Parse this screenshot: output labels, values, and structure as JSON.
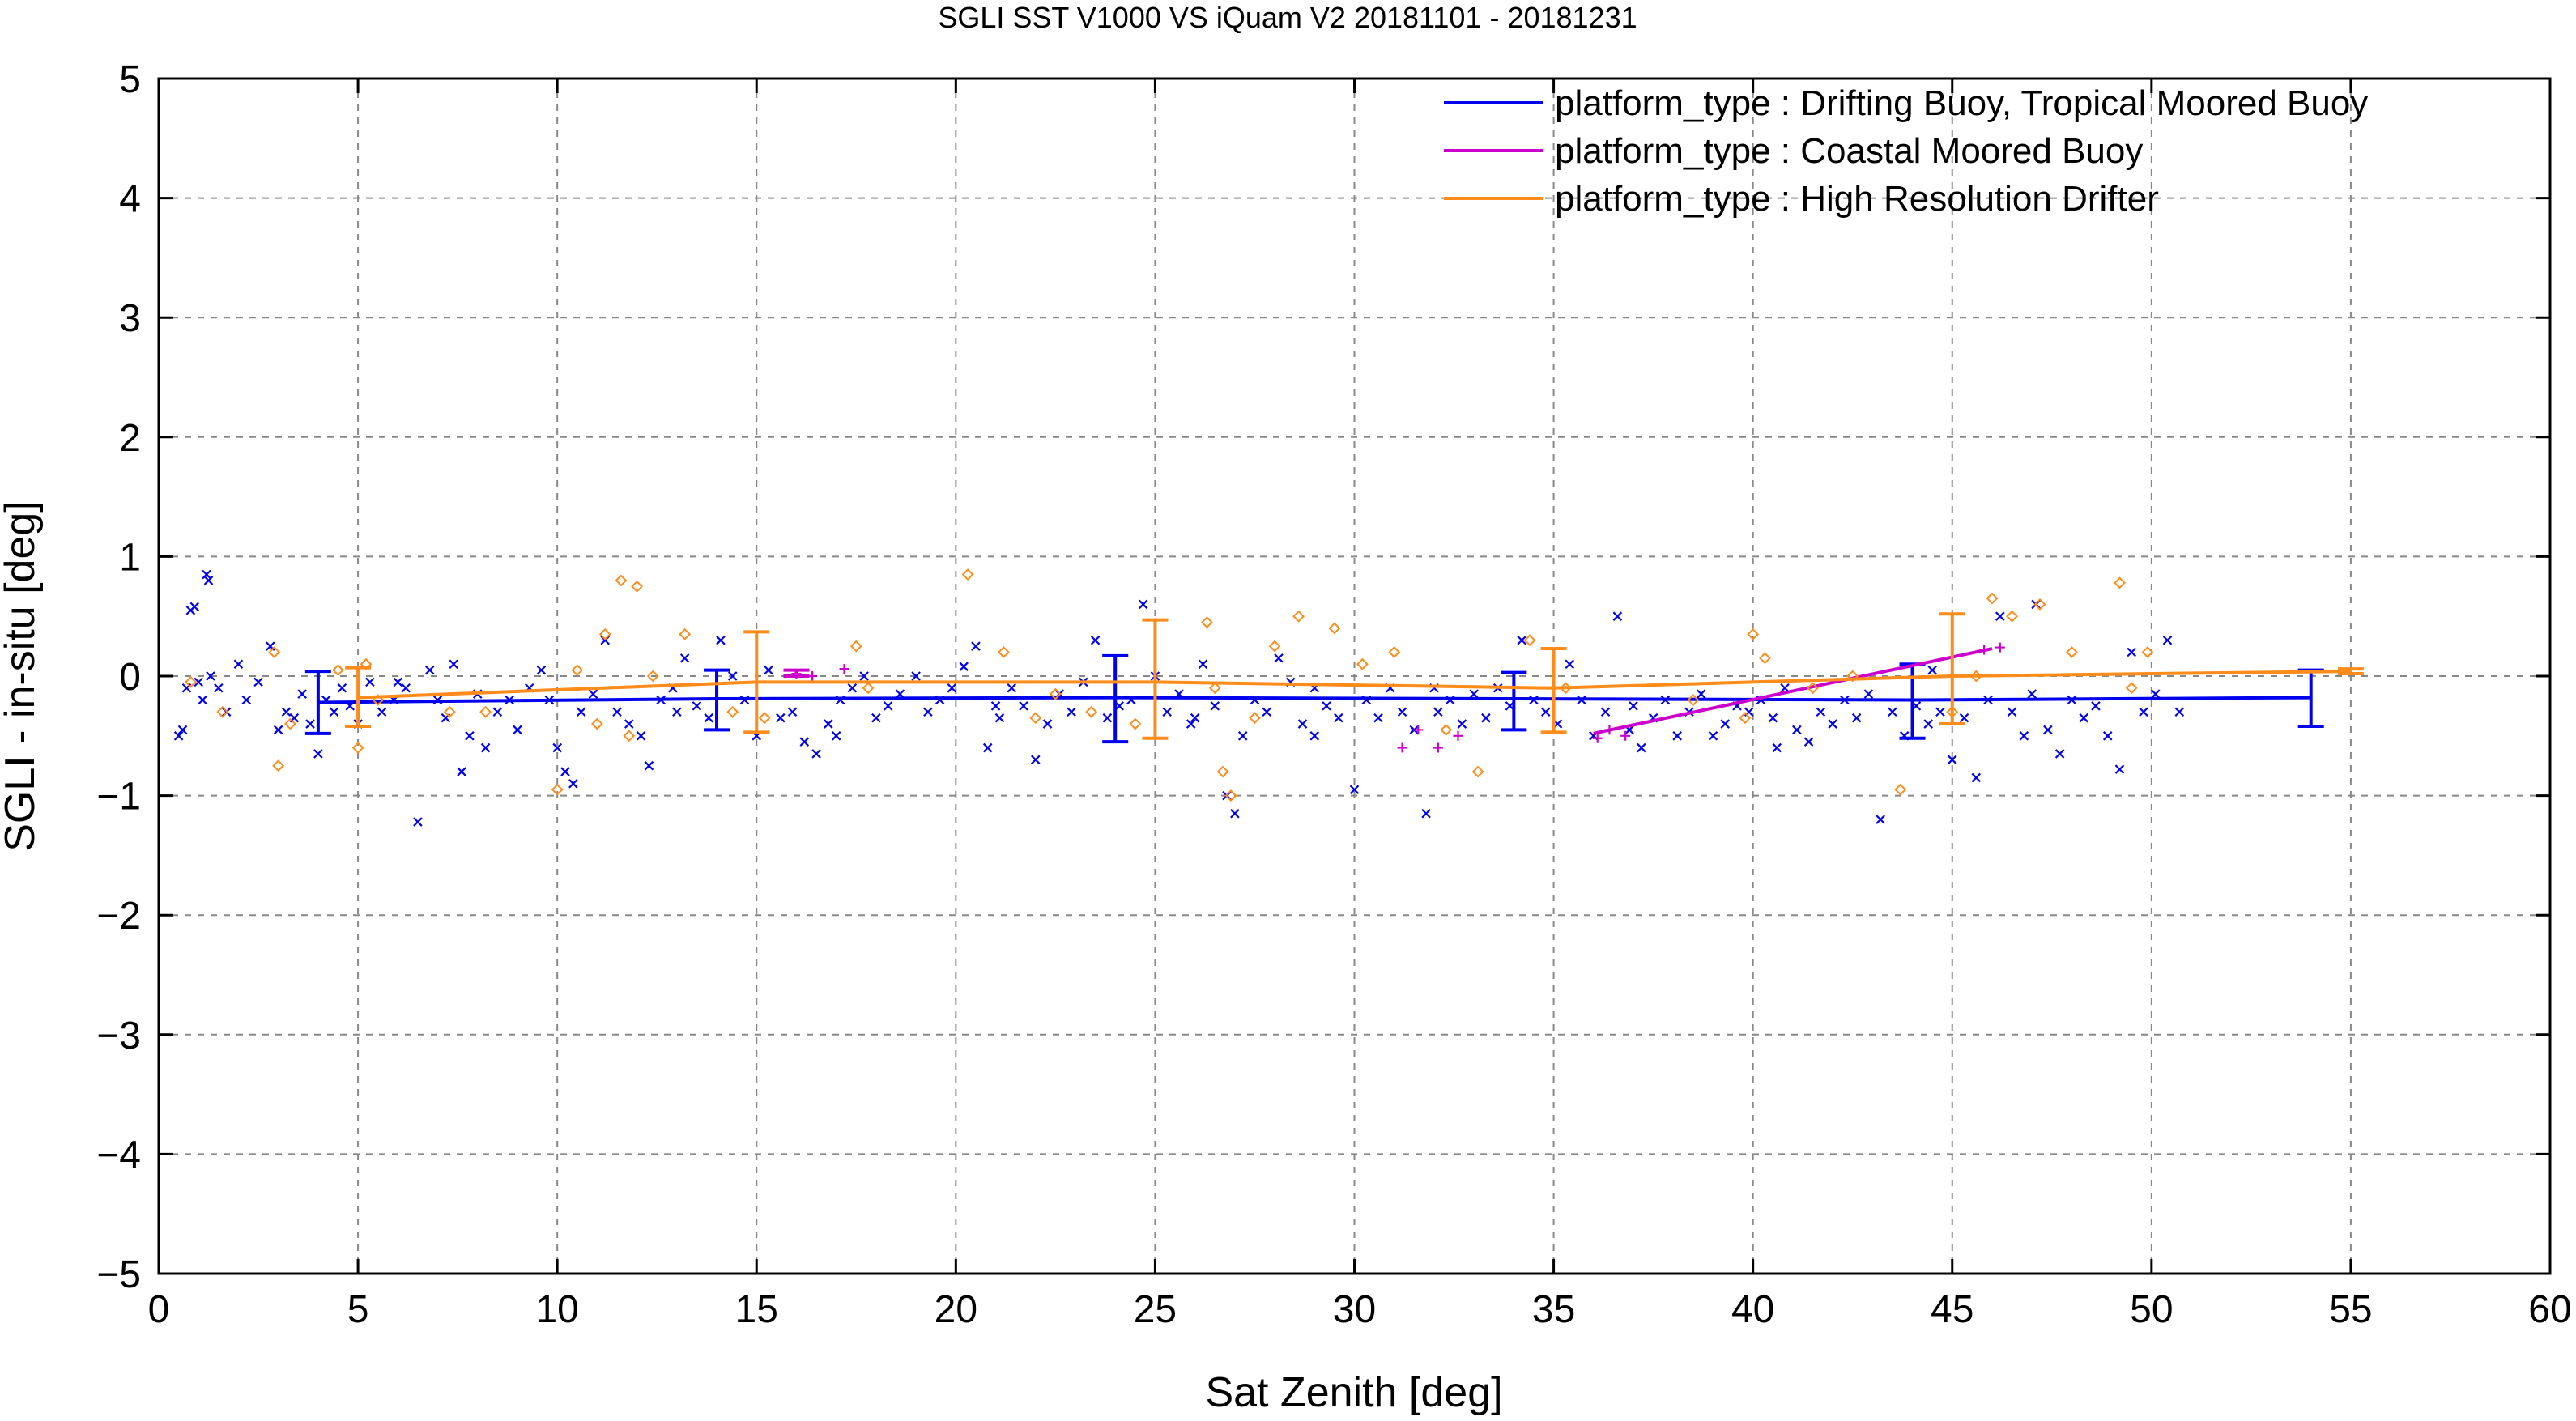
{
  "chart_data": {
    "type": "scatter",
    "title": "SGLI SST V1000 VS iQuam V2 20181101 - 20181231",
    "xlabel": "Sat Zenith [deg]",
    "ylabel": "SGLI - in-situ [deg]",
    "xlim": [
      0,
      60
    ],
    "ylim": [
      -5,
      5
    ],
    "xticks": [
      0,
      5,
      10,
      15,
      20,
      25,
      30,
      35,
      40,
      45,
      50,
      55,
      60
    ],
    "yticks": [
      -5,
      -4,
      -3,
      -2,
      -1,
      0,
      1,
      2,
      3,
      4,
      5
    ],
    "xtick_labels": [
      "0",
      "5",
      "10",
      "15",
      "20",
      "25",
      "30",
      "35",
      "40",
      "45",
      "50",
      "55",
      "60"
    ],
    "ytick_labels": [
      "−5",
      "−4",
      "−3",
      "−2",
      "−1",
      "0",
      "1",
      "2",
      "3",
      "4",
      "5"
    ],
    "grid": true,
    "legend_position": "top-right",
    "series": [
      {
        "name": "platform_type : Drifting Buoy, Tropical Moored Buoy",
        "color": "#0000ee",
        "marker": "x",
        "line": {
          "x": [
            4,
            14,
            24,
            34,
            44,
            54
          ],
          "y": [
            -0.22,
            -0.19,
            -0.18,
            -0.19,
            -0.2,
            -0.18
          ]
        },
        "errorbars": [
          {
            "x": 4,
            "low": -0.48,
            "high": 0.04
          },
          {
            "x": 14,
            "low": -0.45,
            "high": 0.05
          },
          {
            "x": 24,
            "low": -0.55,
            "high": 0.17
          },
          {
            "x": 34,
            "low": -0.45,
            "high": 0.03
          },
          {
            "x": 44,
            "low": -0.52,
            "high": 0.1
          },
          {
            "x": 54,
            "low": -0.42,
            "high": 0.05
          }
        ],
        "points": [
          [
            0.5,
            -0.5
          ],
          [
            0.6,
            -0.45
          ],
          [
            0.7,
            -0.1
          ],
          [
            0.8,
            0.55
          ],
          [
            0.9,
            0.58
          ],
          [
            1.0,
            -0.05
          ],
          [
            1.1,
            -0.2
          ],
          [
            1.2,
            0.85
          ],
          [
            1.25,
            0.8
          ],
          [
            1.3,
            0.0
          ],
          [
            1.5,
            -0.1
          ],
          [
            1.7,
            -0.3
          ],
          [
            2.0,
            0.1
          ],
          [
            2.2,
            -0.2
          ],
          [
            2.5,
            -0.05
          ],
          [
            2.8,
            0.25
          ],
          [
            3.0,
            -0.45
          ],
          [
            3.2,
            -0.3
          ],
          [
            3.4,
            -0.35
          ],
          [
            3.6,
            -0.15
          ],
          [
            3.8,
            -0.4
          ],
          [
            4.0,
            -0.65
          ],
          [
            4.2,
            -0.2
          ],
          [
            4.4,
            -0.3
          ],
          [
            4.6,
            -0.1
          ],
          [
            4.8,
            -0.25
          ],
          [
            5.0,
            -0.4
          ],
          [
            5.3,
            -0.05
          ],
          [
            5.6,
            -0.3
          ],
          [
            5.9,
            -0.2
          ],
          [
            6.2,
            -0.1
          ],
          [
            6.5,
            -1.22
          ],
          [
            6.8,
            0.05
          ],
          [
            7.0,
            -0.2
          ],
          [
            7.2,
            -0.35
          ],
          [
            7.4,
            0.1
          ],
          [
            7.6,
            -0.8
          ],
          [
            7.8,
            -0.5
          ],
          [
            8.0,
            -0.15
          ],
          [
            8.2,
            -0.6
          ],
          [
            8.5,
            -0.3
          ],
          [
            8.8,
            -0.2
          ],
          [
            9.0,
            -0.45
          ],
          [
            9.3,
            -0.1
          ],
          [
            9.6,
            0.05
          ],
          [
            10.0,
            -0.6
          ],
          [
            10.2,
            -0.8
          ],
          [
            10.4,
            -0.9
          ],
          [
            10.6,
            -0.3
          ],
          [
            10.9,
            -0.15
          ],
          [
            11.2,
            0.3
          ],
          [
            11.5,
            -0.3
          ],
          [
            11.8,
            -0.4
          ],
          [
            12.1,
            -0.5
          ],
          [
            12.3,
            -0.75
          ],
          [
            12.6,
            -0.2
          ],
          [
            12.9,
            -0.1
          ],
          [
            13.2,
            0.15
          ],
          [
            13.5,
            -0.25
          ],
          [
            13.8,
            -0.35
          ],
          [
            14.1,
            0.3
          ],
          [
            14.4,
            0.0
          ],
          [
            14.7,
            -0.2
          ],
          [
            15.0,
            -0.5
          ],
          [
            15.3,
            0.05
          ],
          [
            15.6,
            -0.35
          ],
          [
            15.9,
            -0.3
          ],
          [
            16.2,
            -0.55
          ],
          [
            16.5,
            -0.65
          ],
          [
            16.8,
            -0.4
          ],
          [
            17.1,
            -0.2
          ],
          [
            17.4,
            -0.1
          ],
          [
            17.7,
            0.0
          ],
          [
            18.0,
            -0.35
          ],
          [
            18.3,
            -0.25
          ],
          [
            18.6,
            -0.15
          ],
          [
            19.0,
            0.0
          ],
          [
            19.3,
            -0.3
          ],
          [
            19.6,
            -0.2
          ],
          [
            19.9,
            -0.1
          ],
          [
            20.2,
            0.08
          ],
          [
            20.5,
            0.25
          ],
          [
            20.8,
            -0.6
          ],
          [
            21.1,
            -0.35
          ],
          [
            21.4,
            -0.1
          ],
          [
            21.7,
            -0.25
          ],
          [
            22.0,
            -0.7
          ],
          [
            22.3,
            -0.4
          ],
          [
            22.6,
            -0.15
          ],
          [
            22.9,
            -0.3
          ],
          [
            23.2,
            -0.05
          ],
          [
            23.5,
            0.3
          ],
          [
            23.8,
            -0.35
          ],
          [
            24.1,
            -0.25
          ],
          [
            24.4,
            -0.2
          ],
          [
            24.7,
            0.6
          ],
          [
            25.0,
            0.0
          ],
          [
            25.3,
            -0.3
          ],
          [
            25.6,
            -0.15
          ],
          [
            25.9,
            -0.4
          ],
          [
            26.2,
            0.1
          ],
          [
            26.5,
            -0.25
          ],
          [
            26.8,
            -1.0
          ],
          [
            27.0,
            -1.15
          ],
          [
            27.2,
            -0.5
          ],
          [
            27.5,
            -0.2
          ],
          [
            27.8,
            -0.3
          ],
          [
            28.1,
            0.15
          ],
          [
            28.4,
            -0.05
          ],
          [
            28.7,
            -0.4
          ],
          [
            29.0,
            -0.1
          ],
          [
            29.3,
            -0.25
          ],
          [
            29.6,
            -0.35
          ],
          [
            30.0,
            -0.95
          ],
          [
            30.3,
            -0.2
          ],
          [
            30.6,
            -0.35
          ],
          [
            30.9,
            -0.1
          ],
          [
            31.2,
            -0.3
          ],
          [
            31.5,
            -0.45
          ],
          [
            31.8,
            -1.15
          ],
          [
            32.1,
            -0.3
          ],
          [
            32.4,
            -0.2
          ],
          [
            32.7,
            -0.4
          ],
          [
            33.0,
            -0.15
          ],
          [
            33.3,
            -0.35
          ],
          [
            33.6,
            -0.1
          ],
          [
            33.9,
            -0.25
          ],
          [
            34.2,
            0.3
          ],
          [
            34.5,
            -0.2
          ],
          [
            34.8,
            -0.3
          ],
          [
            35.1,
            -0.4
          ],
          [
            35.4,
            0.1
          ],
          [
            35.7,
            -0.2
          ],
          [
            36.0,
            -0.5
          ],
          [
            36.3,
            -0.3
          ],
          [
            36.6,
            0.5
          ],
          [
            36.9,
            -0.45
          ],
          [
            37.2,
            -0.6
          ],
          [
            37.5,
            -0.35
          ],
          [
            37.8,
            -0.2
          ],
          [
            38.1,
            -0.5
          ],
          [
            38.4,
            -0.3
          ],
          [
            38.7,
            -0.15
          ],
          [
            39.0,
            -0.5
          ],
          [
            39.3,
            -0.4
          ],
          [
            39.6,
            -0.25
          ],
          [
            39.9,
            -0.3
          ],
          [
            40.2,
            -0.2
          ],
          [
            40.5,
            -0.35
          ],
          [
            40.8,
            -0.1
          ],
          [
            41.1,
            -0.45
          ],
          [
            41.4,
            -0.55
          ],
          [
            41.7,
            -0.3
          ],
          [
            42.0,
            -0.4
          ],
          [
            42.3,
            -0.2
          ],
          [
            42.6,
            -0.35
          ],
          [
            42.9,
            -0.15
          ],
          [
            43.2,
            -1.2
          ],
          [
            43.5,
            -0.3
          ],
          [
            43.8,
            -0.5
          ],
          [
            44.1,
            -0.25
          ],
          [
            44.4,
            -0.4
          ],
          [
            44.7,
            -0.3
          ],
          [
            45.0,
            -0.7
          ],
          [
            45.3,
            -0.35
          ],
          [
            45.6,
            -0.85
          ],
          [
            45.9,
            -0.2
          ],
          [
            46.2,
            0.5
          ],
          [
            46.5,
            -0.3
          ],
          [
            46.8,
            -0.5
          ],
          [
            47.1,
            0.6
          ],
          [
            47.4,
            -0.45
          ],
          [
            47.7,
            -0.65
          ],
          [
            48.0,
            -0.2
          ],
          [
            48.3,
            -0.35
          ],
          [
            48.6,
            -0.25
          ],
          [
            48.9,
            -0.5
          ],
          [
            49.2,
            -0.78
          ],
          [
            49.5,
            0.2
          ],
          [
            49.8,
            -0.3
          ],
          [
            50.1,
            -0.15
          ],
          [
            50.4,
            0.3
          ],
          [
            50.7,
            -0.3
          ],
          [
            6.0,
            -0.05
          ],
          [
            9.8,
            -0.2
          ],
          [
            13.0,
            -0.3
          ],
          [
            17.0,
            -0.5
          ],
          [
            21.0,
            -0.25
          ],
          [
            26.0,
            -0.35
          ],
          [
            29.0,
            -0.5
          ],
          [
            32.0,
            -0.1
          ],
          [
            37.0,
            -0.25
          ],
          [
            40.6,
            -0.6
          ],
          [
            44.5,
            0.05
          ],
          [
            47.0,
            -0.15
          ]
        ]
      },
      {
        "name": "platform_type : Coastal Moored Buoy",
        "color": "#cc00cc",
        "marker": "+",
        "line": {
          "x": [
            36,
            46
          ],
          "y": [
            -0.48,
            0.23
          ]
        },
        "errorbars": [
          {
            "x": 16,
            "low": 0.0,
            "high": 0.05
          }
        ],
        "points": [
          [
            16.0,
            0.02
          ],
          [
            16.4,
            0.0
          ],
          [
            17.2,
            0.06
          ],
          [
            31.2,
            -0.6
          ],
          [
            31.6,
            -0.45
          ],
          [
            32.1,
            -0.6
          ],
          [
            32.6,
            -0.5
          ],
          [
            36.1,
            -0.52
          ],
          [
            36.4,
            -0.45
          ],
          [
            36.8,
            -0.5
          ],
          [
            45.8,
            0.22
          ],
          [
            46.2,
            0.24
          ]
        ]
      },
      {
        "name": "platform_type : High Resolution Drifter",
        "color": "#ff8c1a",
        "marker": "diamond",
        "line": {
          "x": [
            5,
            15,
            25,
            35,
            45,
            55
          ],
          "y": [
            -0.18,
            -0.05,
            -0.05,
            -0.1,
            0.0,
            0.04
          ]
        },
        "errorbars": [
          {
            "x": 5,
            "low": -0.42,
            "high": 0.07
          },
          {
            "x": 15,
            "low": -0.47,
            "high": 0.37
          },
          {
            "x": 25,
            "low": -0.52,
            "high": 0.47
          },
          {
            "x": 35,
            "low": -0.47,
            "high": 0.23
          },
          {
            "x": 45,
            "low": -0.4,
            "high": 0.52
          },
          {
            "x": 55,
            "low": 0.02,
            "high": 0.06
          }
        ],
        "points": [
          [
            0.8,
            -0.05
          ],
          [
            1.6,
            -0.3
          ],
          [
            2.9,
            0.2
          ],
          [
            3.0,
            -0.75
          ],
          [
            3.3,
            -0.4
          ],
          [
            4.5,
            0.05
          ],
          [
            5.0,
            -0.6
          ],
          [
            5.2,
            0.1
          ],
          [
            5.5,
            -0.2
          ],
          [
            7.3,
            -0.3
          ],
          [
            8.2,
            -0.3
          ],
          [
            10.0,
            -0.95
          ],
          [
            10.5,
            0.05
          ],
          [
            11.0,
            -0.4
          ],
          [
            11.2,
            0.35
          ],
          [
            11.6,
            0.8
          ],
          [
            11.8,
            -0.5
          ],
          [
            12.4,
            0.0
          ],
          [
            13.2,
            0.35
          ],
          [
            14.4,
            -0.3
          ],
          [
            15.2,
            -0.35
          ],
          [
            17.5,
            0.25
          ],
          [
            17.8,
            -0.1
          ],
          [
            20.3,
            0.85
          ],
          [
            21.2,
            0.2
          ],
          [
            22.0,
            -0.35
          ],
          [
            22.5,
            -0.15
          ],
          [
            23.4,
            -0.3
          ],
          [
            24.5,
            -0.4
          ],
          [
            26.3,
            0.45
          ],
          [
            26.7,
            -0.8
          ],
          [
            26.9,
            -1.0
          ],
          [
            27.5,
            -0.35
          ],
          [
            28.0,
            0.25
          ],
          [
            28.6,
            0.5
          ],
          [
            29.5,
            0.4
          ],
          [
            30.2,
            0.1
          ],
          [
            31.0,
            0.2
          ],
          [
            32.3,
            -0.45
          ],
          [
            33.1,
            -0.8
          ],
          [
            34.4,
            0.3
          ],
          [
            35.3,
            -0.1
          ],
          [
            38.5,
            -0.2
          ],
          [
            39.8,
            -0.35
          ],
          [
            40.0,
            0.35
          ],
          [
            40.3,
            0.15
          ],
          [
            41.5,
            -0.1
          ],
          [
            42.5,
            0.0
          ],
          [
            43.7,
            -0.95
          ],
          [
            45.0,
            -0.3
          ],
          [
            45.6,
            0.0
          ],
          [
            46.0,
            0.65
          ],
          [
            46.5,
            0.5
          ],
          [
            47.2,
            0.6
          ],
          [
            48.0,
            0.2
          ],
          [
            49.2,
            0.78
          ],
          [
            49.5,
            -0.1
          ],
          [
            49.9,
            0.2
          ],
          [
            26.5,
            -0.1
          ],
          [
            12.0,
            0.75
          ]
        ]
      }
    ]
  }
}
